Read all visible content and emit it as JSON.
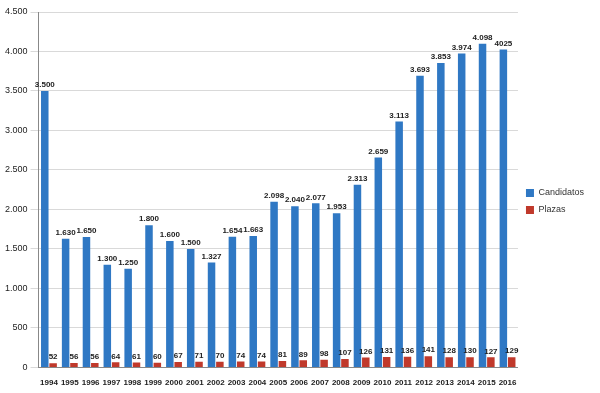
{
  "chart_data": {
    "type": "bar",
    "categories": [
      "1994",
      "1995",
      "1996",
      "1997",
      "1998",
      "1999",
      "2000",
      "2001",
      "2002",
      "2003",
      "2004",
      "2005",
      "2006",
      "2007",
      "2008",
      "2009",
      "2010",
      "2011",
      "2012",
      "2013",
      "2014",
      "2015",
      "2016"
    ],
    "series": [
      {
        "name": "Candidatos",
        "color": "#2f78c4",
        "values": [
          3500,
          1630,
          1650,
          1300,
          1250,
          1800,
          1600,
          1500,
          1327,
          1654,
          1663,
          2098,
          2040,
          2077,
          1953,
          2313,
          2659,
          3113,
          3693,
          3853,
          3974,
          4098,
          4025
        ],
        "value_labels": [
          "3.500",
          "1.630",
          "1.650",
          "1.300",
          "1.250",
          "1.800",
          "1.600",
          "1.500",
          "1.327",
          "1.654",
          "1.663",
          "2.098",
          "2.040",
          "2.077",
          "1.953",
          "2.313",
          "2.659",
          "3.113",
          "3.693",
          "3.853",
          "3.974",
          "4.098",
          "4025"
        ]
      },
      {
        "name": "Plazas",
        "color": "#c0392b",
        "values": [
          52,
          56,
          56,
          64,
          61,
          60,
          67,
          71,
          70,
          74,
          74,
          81,
          89,
          98,
          107,
          126,
          131,
          136,
          141,
          128,
          130,
          127,
          129
        ]
      }
    ],
    "ylim": [
      0,
      4500
    ],
    "yticks": [
      0,
      500,
      {
        "value": 1000,
        "label": "1.000"
      },
      {
        "value": 1500,
        "label": "1.500"
      },
      {
        "value": 2000,
        "label": "2.000"
      },
      {
        "value": 2500,
        "label": "2.500"
      },
      {
        "value": 3000,
        "label": "3.000"
      },
      {
        "value": 3500,
        "label": "3.500"
      },
      {
        "value": 4000,
        "label": "4.000"
      },
      {
        "value": 4500,
        "label": "4.500"
      }
    ],
    "grid": true,
    "legend": "right",
    "data_labels": true
  }
}
